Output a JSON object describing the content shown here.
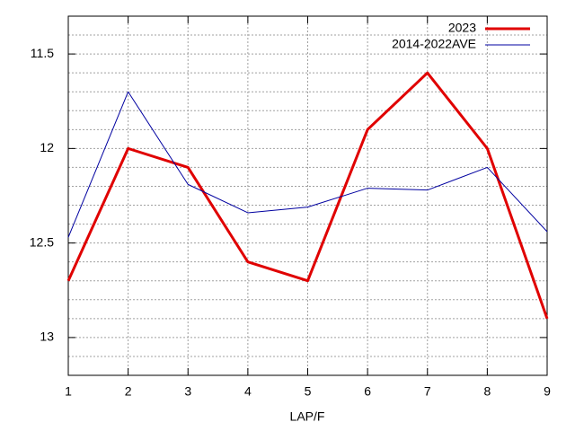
{
  "chart_data": {
    "type": "line",
    "x_label": "LAP/F",
    "x": [
      1,
      2,
      3,
      4,
      5,
      6,
      7,
      8,
      9
    ],
    "xlim": [
      1,
      9
    ],
    "xticks": [
      1,
      2,
      3,
      4,
      5,
      6,
      7,
      8,
      9
    ],
    "ylim": [
      13.2,
      11.3
    ],
    "y_reversed": true,
    "yticks": [
      11.5,
      12,
      12.5,
      13
    ],
    "yminorticks": [
      11.3,
      11.4,
      11.6,
      11.7,
      11.8,
      11.9,
      12.1,
      12.2,
      12.3,
      12.4,
      12.6,
      12.7,
      12.8,
      12.9,
      13.1,
      13.2
    ],
    "grid": true,
    "legend": "top-right",
    "series": [
      {
        "name": "2023",
        "color": "#e00000",
        "width": 3,
        "values": [
          12.7,
          12.0,
          12.1,
          12.6,
          12.7,
          11.9,
          11.6,
          12.0,
          12.9
        ]
      },
      {
        "name": "2014-2022AVE",
        "color": "#0000a0",
        "width": 1,
        "values": [
          12.47,
          11.7,
          12.19,
          12.34,
          12.31,
          12.21,
          12.22,
          12.1,
          12.44
        ]
      }
    ]
  }
}
